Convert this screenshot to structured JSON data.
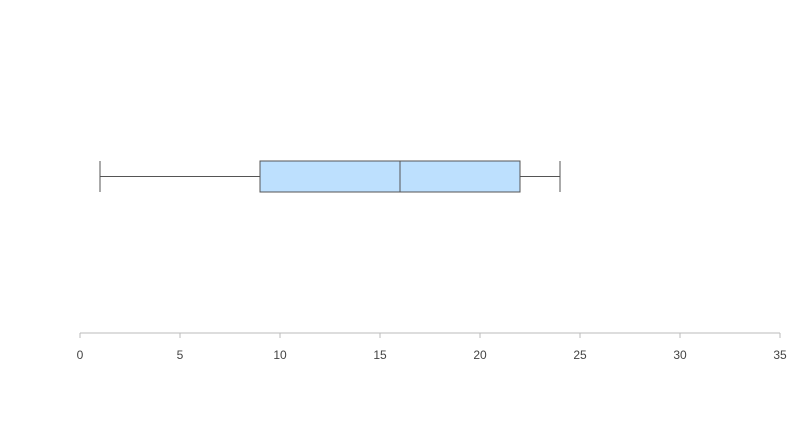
{
  "chart_data": {
    "type": "boxplot",
    "orientation": "horizontal",
    "series": [
      {
        "min": 1,
        "q1": 9,
        "median": 16,
        "q3": 22,
        "max": 24
      }
    ],
    "xlim": [
      0,
      35
    ],
    "x_ticks": [
      0,
      5,
      10,
      15,
      20,
      25,
      30,
      35
    ],
    "title": "",
    "xlabel": "",
    "ylabel": "",
    "grid": false,
    "colors": {
      "box_fill": "#bde0fe",
      "stroke": "#555555",
      "axis": "#bbbbbb"
    }
  }
}
